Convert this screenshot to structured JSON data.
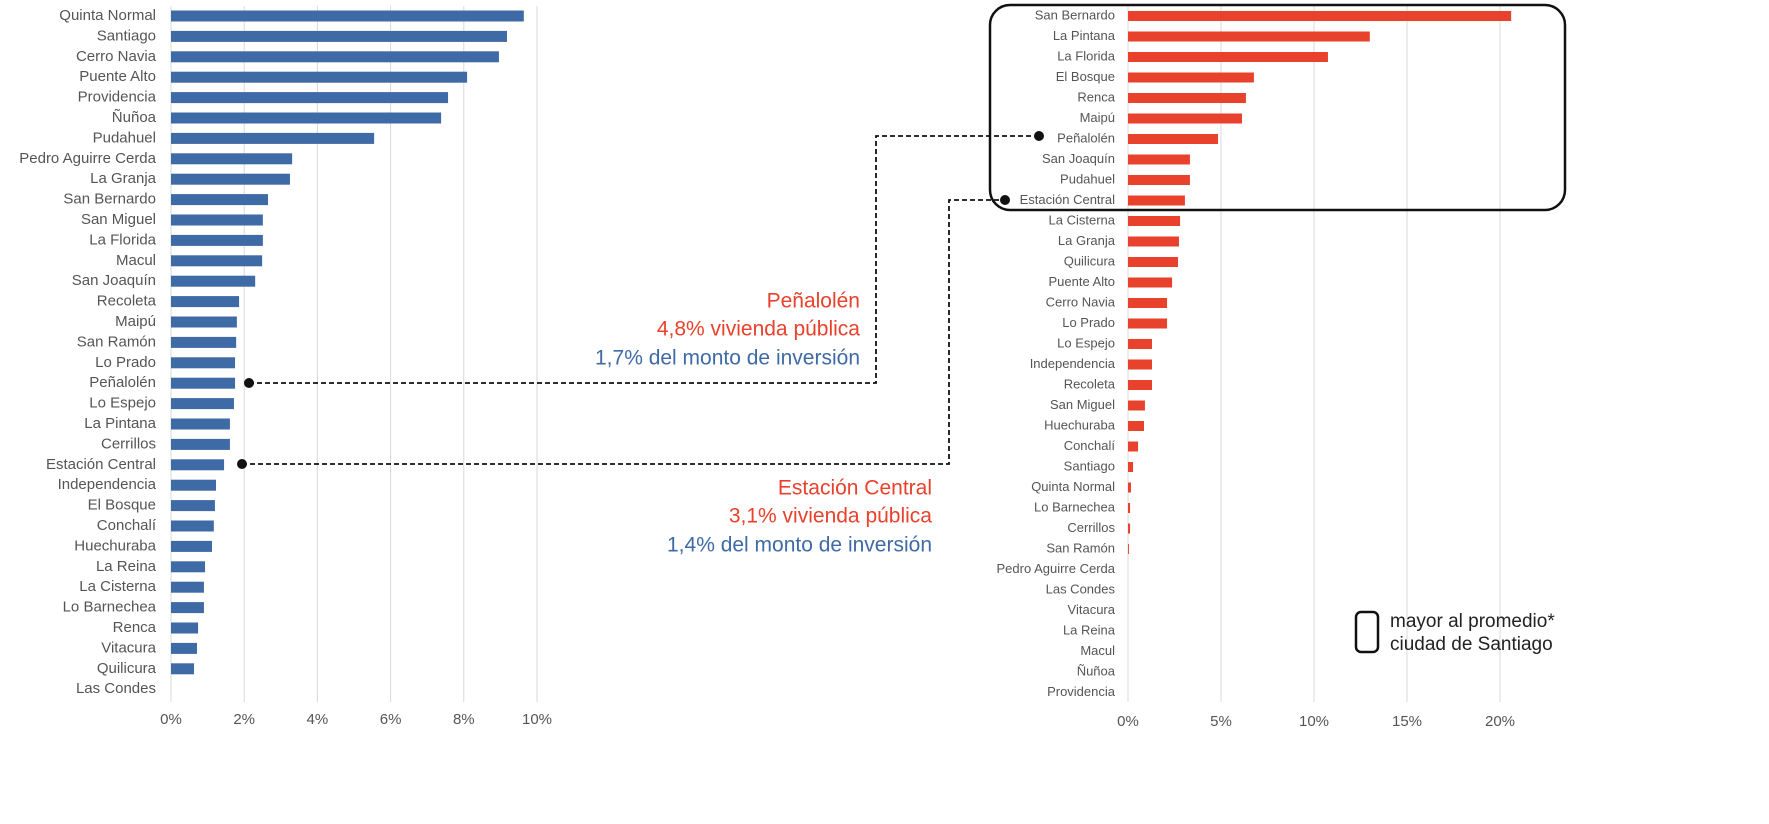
{
  "chart_data": [
    {
      "type": "bar",
      "orientation": "horizontal",
      "color": "#3e6aa6",
      "grid": true,
      "categories": [
        "Quinta Normal",
        "Santiago",
        "Cerro Navia",
        "Puente Alto",
        "Providencia",
        "Ñuñoa",
        "Pudahuel",
        "Pedro Aguirre Cerda",
        "La Granja",
        "San Bernardo",
        "San Miguel",
        "La Florida",
        "Macul",
        "San Joaquín",
        "Recoleta",
        "Maipú",
        "San Ramón",
        "Lo Prado",
        "Peñalolén",
        "Lo Espejo",
        "La Pintana",
        "Cerrillos",
        "Estación Central",
        "Independencia",
        "El Bosque",
        "Conchalí",
        "Huechuraba",
        "La Reina",
        "La Cisterna",
        "Lo Barnechea",
        "Renca",
        "Vitacura",
        "Quilicura",
        "Las Condes"
      ],
      "values": [
        9.64,
        9.18,
        8.96,
        8.09,
        7.57,
        7.38,
        5.55,
        3.31,
        3.25,
        2.65,
        2.51,
        2.51,
        2.49,
        2.3,
        1.86,
        1.8,
        1.78,
        1.75,
        1.75,
        1.72,
        1.61,
        1.61,
        1.45,
        1.23,
        1.2,
        1.17,
        1.12,
        0.93,
        0.9,
        0.9,
        0.74,
        0.71,
        0.63,
        0
      ],
      "xlim": [
        0,
        10
      ],
      "xticks": [
        {
          "value": 0,
          "label": "0%"
        },
        {
          "value": 2,
          "label": "2%"
        },
        {
          "value": 4,
          "label": "4%"
        },
        {
          "value": 6,
          "label": "6%"
        },
        {
          "value": 8,
          "label": "8%"
        },
        {
          "value": 10,
          "label": "10%"
        }
      ]
    },
    {
      "type": "bar",
      "orientation": "horizontal",
      "color": "#e8412c",
      "grid": true,
      "categories": [
        "San Bernardo",
        "La Pintana",
        "La Florida",
        "El Bosque",
        "Renca",
        "Maipú",
        "Peñalolén",
        "San Joaquín",
        "Pudahuel",
        "Estación Central",
        "La Cisterna",
        "La Granja",
        "Quilicura",
        "Puente Alto",
        "Cerro Navia",
        "Lo Prado",
        "Lo Espejo",
        "Independencia",
        "Recoleta",
        "San Miguel",
        "Huechuraba",
        "Conchalí",
        "Santiago",
        "Quinta Normal",
        "Lo Barnechea",
        "Cerrillos",
        "San Ramón",
        "Pedro Aguirre Cerda",
        "Las Condes",
        "Vitacura",
        "La Reina",
        "Macul",
        "Ñuñoa",
        "Providencia"
      ],
      "values": [
        20.6,
        13.0,
        10.75,
        6.77,
        6.34,
        6.13,
        4.84,
        3.33,
        3.33,
        3.06,
        2.8,
        2.74,
        2.69,
        2.37,
        2.1,
        2.1,
        1.29,
        1.29,
        1.29,
        0.91,
        0.86,
        0.54,
        0.27,
        0.16,
        0.11,
        0.11,
        0.05,
        0,
        0,
        0,
        0,
        0,
        0,
        0
      ],
      "xlim": [
        0,
        20
      ],
      "xticks": [
        {
          "value": 0,
          "label": "0%"
        },
        {
          "value": 5,
          "label": "5%"
        },
        {
          "value": 10,
          "label": "10%"
        },
        {
          "value": 15,
          "label": "15%"
        },
        {
          "value": 20,
          "label": "20%"
        }
      ]
    }
  ],
  "annotations": [
    {
      "text": "Peñalolén",
      "color": "#e8412c"
    },
    {
      "text": "4,8% vivienda pública",
      "color": "#e8412c"
    },
    {
      "text": "1,7% del monto de inversión",
      "color": "#3e6aa6"
    },
    {
      "text": "Estación Central",
      "color": "#e8412c"
    },
    {
      "text": "3,1% vivienda pública",
      "color": "#e8412c"
    },
    {
      "text": "1,4% del monto de inversión",
      "color": "#3e6aa6"
    }
  ],
  "legend": {
    "lines": [
      "mayor al promedio*",
      "ciudad de Santiago"
    ]
  }
}
